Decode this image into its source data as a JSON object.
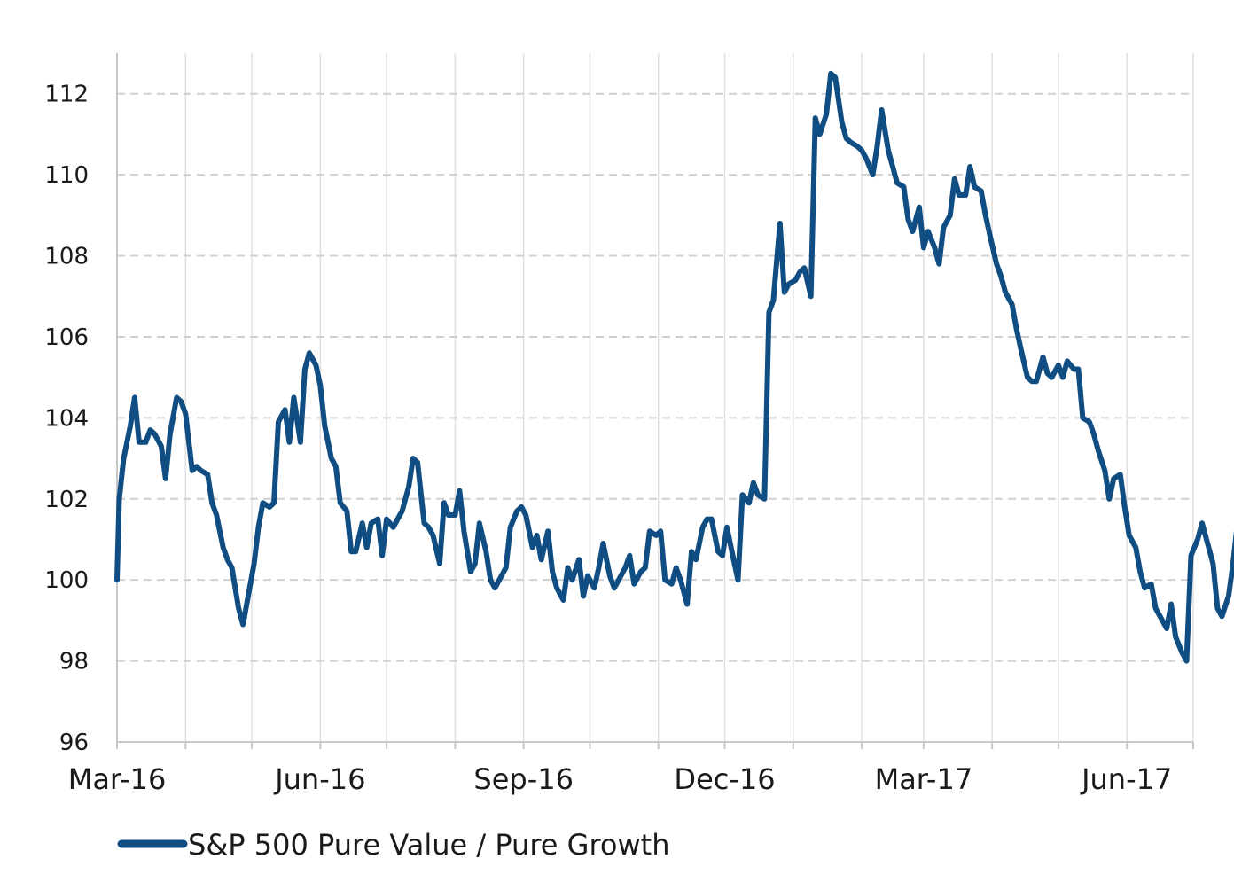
{
  "chart_data": {
    "type": "line",
    "title": "",
    "xlabel": "",
    "ylabel": "",
    "x_range": [
      "2016-03-01",
      "2017-07-01"
    ],
    "x_tick_labels": [
      {
        "date": "2016-03-01",
        "label": "Mar-16"
      },
      {
        "date": "2016-06-01",
        "label": "Jun-16"
      },
      {
        "date": "2016-09-01",
        "label": "Sep-16"
      },
      {
        "date": "2016-12-01",
        "label": "Dec-16"
      },
      {
        "date": "2017-03-01",
        "label": "Mar-17"
      },
      {
        "date": "2017-06-01",
        "label": "Jun-17"
      }
    ],
    "x_grid_dates": [
      "2016-03-01",
      "2016-04-01",
      "2016-05-01",
      "2016-06-01",
      "2016-07-01",
      "2016-08-01",
      "2016-09-01",
      "2016-10-01",
      "2016-11-01",
      "2016-12-01",
      "2017-01-01",
      "2017-02-01",
      "2017-03-01",
      "2017-04-01",
      "2017-05-01",
      "2017-06-01",
      "2017-07-01"
    ],
    "ylim": [
      96,
      113
    ],
    "y_ticks": [
      96,
      98,
      100,
      102,
      104,
      106,
      108,
      110,
      112
    ],
    "grid": {
      "horizontal": "dashed",
      "vertical": "solid"
    },
    "legend": {
      "position": "bottom-left"
    },
    "colors": {
      "series": "#0f4d82",
      "grid_h": "#d0d0d0",
      "grid_v": "#e0e0e0",
      "axis": "#c8c8c8"
    },
    "series": [
      {
        "name": "S&P 500 Pure Value / Pure Growth",
        "points": [
          [
            "2016-03-01",
            100.0
          ],
          [
            "2016-03-02",
            102.0
          ],
          [
            "2016-03-04",
            103.0
          ],
          [
            "2016-03-07",
            103.8
          ],
          [
            "2016-03-09",
            104.5
          ],
          [
            "2016-03-11",
            103.4
          ],
          [
            "2016-03-14",
            103.4
          ],
          [
            "2016-03-16",
            103.7
          ],
          [
            "2016-03-18",
            103.6
          ],
          [
            "2016-03-21",
            103.3
          ],
          [
            "2016-03-23",
            102.5
          ],
          [
            "2016-03-25",
            103.6
          ],
          [
            "2016-03-28",
            104.5
          ],
          [
            "2016-03-30",
            104.4
          ],
          [
            "2016-04-01",
            104.1
          ],
          [
            "2016-04-04",
            102.7
          ],
          [
            "2016-04-06",
            102.8
          ],
          [
            "2016-04-08",
            102.7
          ],
          [
            "2016-04-11",
            102.6
          ],
          [
            "2016-04-13",
            101.9
          ],
          [
            "2016-04-15",
            101.6
          ],
          [
            "2016-04-18",
            100.8
          ],
          [
            "2016-04-20",
            100.5
          ],
          [
            "2016-04-22",
            100.3
          ],
          [
            "2016-04-25",
            99.3
          ],
          [
            "2016-04-27",
            98.9
          ],
          [
            "2016-04-29",
            99.5
          ],
          [
            "2016-05-02",
            100.4
          ],
          [
            "2016-05-04",
            101.3
          ],
          [
            "2016-05-06",
            101.9
          ],
          [
            "2016-05-09",
            101.8
          ],
          [
            "2016-05-11",
            101.9
          ],
          [
            "2016-05-13",
            103.9
          ],
          [
            "2016-05-16",
            104.2
          ],
          [
            "2016-05-18",
            103.4
          ],
          [
            "2016-05-20",
            104.5
          ],
          [
            "2016-05-23",
            103.4
          ],
          [
            "2016-05-25",
            105.2
          ],
          [
            "2016-05-27",
            105.6
          ],
          [
            "2016-05-30",
            105.3
          ],
          [
            "2016-06-01",
            104.8
          ],
          [
            "2016-06-03",
            103.8
          ],
          [
            "2016-06-06",
            103.0
          ],
          [
            "2016-06-08",
            102.8
          ],
          [
            "2016-06-10",
            101.9
          ],
          [
            "2016-06-13",
            101.7
          ],
          [
            "2016-06-15",
            100.7
          ],
          [
            "2016-06-17",
            100.7
          ],
          [
            "2016-06-20",
            101.4
          ],
          [
            "2016-06-22",
            100.8
          ],
          [
            "2016-06-24",
            101.4
          ],
          [
            "2016-06-27",
            101.5
          ],
          [
            "2016-06-29",
            100.6
          ],
          [
            "2016-07-01",
            101.5
          ],
          [
            "2016-07-04",
            101.3
          ],
          [
            "2016-07-06",
            101.5
          ],
          [
            "2016-07-08",
            101.7
          ],
          [
            "2016-07-11",
            102.3
          ],
          [
            "2016-07-13",
            103.0
          ],
          [
            "2016-07-15",
            102.9
          ],
          [
            "2016-07-18",
            101.4
          ],
          [
            "2016-07-20",
            101.3
          ],
          [
            "2016-07-22",
            101.1
          ],
          [
            "2016-07-25",
            100.4
          ],
          [
            "2016-07-27",
            101.9
          ],
          [
            "2016-07-29",
            101.6
          ],
          [
            "2016-08-01",
            101.6
          ],
          [
            "2016-08-03",
            102.2
          ],
          [
            "2016-08-05",
            101.2
          ],
          [
            "2016-08-08",
            100.2
          ],
          [
            "2016-08-10",
            100.4
          ],
          [
            "2016-08-12",
            101.4
          ],
          [
            "2016-08-15",
            100.7
          ],
          [
            "2016-08-17",
            100.0
          ],
          [
            "2016-08-19",
            99.8
          ],
          [
            "2016-08-22",
            100.1
          ],
          [
            "2016-08-24",
            100.3
          ],
          [
            "2016-08-26",
            101.3
          ],
          [
            "2016-08-29",
            101.7
          ],
          [
            "2016-08-31",
            101.8
          ],
          [
            "2016-09-02",
            101.6
          ],
          [
            "2016-09-05",
            100.8
          ],
          [
            "2016-09-07",
            101.1
          ],
          [
            "2016-09-09",
            100.5
          ],
          [
            "2016-09-12",
            101.2
          ],
          [
            "2016-09-14",
            100.2
          ],
          [
            "2016-09-16",
            99.8
          ],
          [
            "2016-09-19",
            99.5
          ],
          [
            "2016-09-21",
            100.3
          ],
          [
            "2016-09-23",
            100.0
          ],
          [
            "2016-09-26",
            100.5
          ],
          [
            "2016-09-28",
            99.6
          ],
          [
            "2016-09-30",
            100.1
          ],
          [
            "2016-10-03",
            99.8
          ],
          [
            "2016-10-05",
            100.3
          ],
          [
            "2016-10-07",
            100.9
          ],
          [
            "2016-10-10",
            100.1
          ],
          [
            "2016-10-12",
            99.8
          ],
          [
            "2016-10-14",
            100.0
          ],
          [
            "2016-10-17",
            100.3
          ],
          [
            "2016-10-19",
            100.6
          ],
          [
            "2016-10-21",
            99.9
          ],
          [
            "2016-10-24",
            100.2
          ],
          [
            "2016-10-26",
            100.3
          ],
          [
            "2016-10-28",
            101.2
          ],
          [
            "2016-10-31",
            101.1
          ],
          [
            "2016-11-02",
            101.2
          ],
          [
            "2016-11-04",
            100.0
          ],
          [
            "2016-11-07",
            99.9
          ],
          [
            "2016-11-09",
            100.3
          ],
          [
            "2016-11-11",
            100.0
          ],
          [
            "2016-11-14",
            99.4
          ],
          [
            "2016-11-16",
            100.7
          ],
          [
            "2016-11-18",
            100.5
          ],
          [
            "2016-11-21",
            101.3
          ],
          [
            "2016-11-23",
            101.5
          ],
          [
            "2016-11-25",
            101.5
          ],
          [
            "2016-11-28",
            100.7
          ],
          [
            "2016-11-30",
            100.6
          ],
          [
            "2016-12-02",
            101.3
          ],
          [
            "2016-12-05",
            100.5
          ],
          [
            "2016-12-07",
            100.0
          ],
          [
            "2016-12-09",
            102.1
          ],
          [
            "2016-12-12",
            101.9
          ],
          [
            "2016-12-14",
            102.4
          ],
          [
            "2016-12-16",
            102.1
          ],
          [
            "2016-12-19",
            102.0
          ],
          [
            "2016-12-21",
            106.6
          ],
          [
            "2016-12-23",
            106.9
          ],
          [
            "2016-12-26",
            108.8
          ],
          [
            "2016-12-28",
            107.1
          ],
          [
            "2016-12-30",
            107.3
          ],
          [
            "2017-01-02",
            107.4
          ],
          [
            "2017-01-04",
            107.6
          ],
          [
            "2017-01-06",
            107.7
          ],
          [
            "2017-01-09",
            107.0
          ],
          [
            "2017-01-11",
            111.4
          ],
          [
            "2017-01-13",
            111.0
          ],
          [
            "2017-01-16",
            111.5
          ],
          [
            "2017-01-18",
            112.5
          ],
          [
            "2017-01-20",
            112.4
          ],
          [
            "2017-01-23",
            111.3
          ],
          [
            "2017-01-25",
            110.9
          ],
          [
            "2017-01-27",
            110.8
          ],
          [
            "2017-01-30",
            110.7
          ],
          [
            "2017-02-01",
            110.6
          ],
          [
            "2017-02-03",
            110.4
          ],
          [
            "2017-02-06",
            110.0
          ],
          [
            "2017-02-08",
            110.7
          ],
          [
            "2017-02-10",
            111.6
          ],
          [
            "2017-02-13",
            110.6
          ],
          [
            "2017-02-15",
            110.2
          ],
          [
            "2017-02-17",
            109.8
          ],
          [
            "2017-02-20",
            109.7
          ],
          [
            "2017-02-22",
            108.9
          ],
          [
            "2017-02-24",
            108.6
          ],
          [
            "2017-02-27",
            109.2
          ],
          [
            "2017-03-01",
            108.2
          ],
          [
            "2017-03-03",
            108.6
          ],
          [
            "2017-03-06",
            108.2
          ],
          [
            "2017-03-08",
            107.8
          ],
          [
            "2017-03-10",
            108.7
          ],
          [
            "2017-03-13",
            109.0
          ],
          [
            "2017-03-15",
            109.9
          ],
          [
            "2017-03-17",
            109.5
          ],
          [
            "2017-03-20",
            109.5
          ],
          [
            "2017-03-22",
            110.2
          ],
          [
            "2017-03-24",
            109.7
          ],
          [
            "2017-03-27",
            109.6
          ],
          [
            "2017-03-29",
            109.0
          ],
          [
            "2017-03-31",
            108.5
          ],
          [
            "2017-04-03",
            107.8
          ],
          [
            "2017-04-05",
            107.5
          ],
          [
            "2017-04-07",
            107.1
          ],
          [
            "2017-04-10",
            106.8
          ],
          [
            "2017-04-12",
            106.2
          ],
          [
            "2017-04-14",
            105.7
          ],
          [
            "2017-04-17",
            105.0
          ],
          [
            "2017-04-19",
            104.9
          ],
          [
            "2017-04-21",
            104.9
          ],
          [
            "2017-04-24",
            105.5
          ],
          [
            "2017-04-26",
            105.1
          ],
          [
            "2017-04-28",
            105.0
          ],
          [
            "2017-05-01",
            105.3
          ],
          [
            "2017-05-03",
            105.0
          ],
          [
            "2017-05-05",
            105.4
          ],
          [
            "2017-05-08",
            105.2
          ],
          [
            "2017-05-10",
            105.2
          ],
          [
            "2017-05-12",
            104.0
          ],
          [
            "2017-05-15",
            103.9
          ],
          [
            "2017-05-17",
            103.6
          ],
          [
            "2017-05-19",
            103.2
          ],
          [
            "2017-05-22",
            102.7
          ],
          [
            "2017-05-24",
            102.0
          ],
          [
            "2017-05-26",
            102.5
          ],
          [
            "2017-05-29",
            102.6
          ],
          [
            "2017-05-31",
            101.8
          ],
          [
            "2017-06-02",
            101.1
          ],
          [
            "2017-06-05",
            100.8
          ],
          [
            "2017-06-07",
            100.2
          ],
          [
            "2017-06-09",
            99.8
          ],
          [
            "2017-06-12",
            99.9
          ],
          [
            "2017-06-14",
            99.3
          ],
          [
            "2017-06-16",
            99.1
          ],
          [
            "2017-06-19",
            98.8
          ],
          [
            "2017-06-21",
            99.4
          ],
          [
            "2017-06-23",
            98.6
          ],
          [
            "2017-06-26",
            98.2
          ],
          [
            "2017-06-28",
            98.0
          ],
          [
            "2017-06-30",
            100.6
          ],
          [
            "2017-07-03",
            101.0
          ],
          [
            "2017-07-05",
            101.4
          ],
          [
            "2017-07-07",
            101.0
          ],
          [
            "2017-07-10",
            100.4
          ],
          [
            "2017-07-12",
            99.3
          ],
          [
            "2017-07-14",
            99.1
          ],
          [
            "2017-07-17",
            99.6
          ],
          [
            "2017-07-19",
            100.4
          ],
          [
            "2017-07-21",
            101.4
          ]
        ]
      }
    ]
  }
}
